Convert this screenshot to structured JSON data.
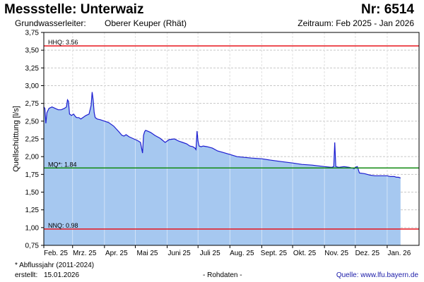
{
  "header": {
    "title": "Messstelle: Unterwaiz",
    "nr": "Nr: 6514",
    "aquifer_label": "Grundwasserleiter:",
    "aquifer_value": "Oberer Keuper (Rhät)",
    "period": "Zeitraum: Feb 2025 - Jan 2026"
  },
  "footer": {
    "footnote": "* Abflussjahr (2011-2024)",
    "created_label": "erstellt:",
    "created_date": "15.01.2026",
    "rohdaten": "- Rohdaten -",
    "source": "Quelle: www.lfu.bayern.de"
  },
  "chart_data": {
    "type": "area",
    "ylabel": "Quellschüttung [l/s]",
    "xlabel": "",
    "ylim": [
      0.75,
      3.75
    ],
    "xlim": [
      "2025-02-01",
      "2026-02-01"
    ],
    "grid": true,
    "yticks": [
      "0,75",
      "1,00",
      "1,25",
      "1,50",
      "1,75",
      "2,00",
      "2,25",
      "2,50",
      "2,75",
      "3,00",
      "3,25",
      "3,50",
      "3,75"
    ],
    "xticks": [
      {
        "date": "2025-02-01",
        "label": "Feb. 25"
      },
      {
        "date": "2025-03-01",
        "label": "Mrz. 25"
      },
      {
        "date": "2025-04-01",
        "label": "Apr. 25"
      },
      {
        "date": "2025-05-01",
        "label": "Mai 25"
      },
      {
        "date": "2025-06-01",
        "label": "Juni 25"
      },
      {
        "date": "2025-07-01",
        "label": "Juli 25"
      },
      {
        "date": "2025-08-01",
        "label": "Aug. 25"
      },
      {
        "date": "2025-09-01",
        "label": "Sept. 25"
      },
      {
        "date": "2025-10-01",
        "label": "Okt. 25"
      },
      {
        "date": "2025-11-01",
        "label": "Nov. 25"
      },
      {
        "date": "2025-12-01",
        "label": "Dez. 25"
      },
      {
        "date": "2026-01-01",
        "label": "Jan. 26"
      }
    ],
    "reference_lines": [
      {
        "label": "HHQ: 3.56",
        "value": 3.56,
        "color": "#e8141c"
      },
      {
        "label": "MQ*: 1.84",
        "value": 1.84,
        "color": "#128a12"
      },
      {
        "label": "NNQ: 0.98",
        "value": 0.98,
        "color": "#e8141c"
      }
    ],
    "colors": {
      "line": "#1c1cd0",
      "fill": "#a6c8f0",
      "grid": "#c8c8c8"
    },
    "series": [
      {
        "x": [
          "2025-02-01",
          "2025-02-02",
          "2025-02-03",
          "2025-02-04",
          "2025-02-06",
          "2025-02-09",
          "2025-02-12",
          "2025-02-15",
          "2025-02-18",
          "2025-02-21",
          "2025-02-23",
          "2025-02-24",
          "2025-02-25",
          "2025-02-26",
          "2025-02-28",
          "2025-03-02",
          "2025-03-04",
          "2025-03-05",
          "2025-03-07",
          "2025-03-09",
          "2025-03-11",
          "2025-03-14",
          "2025-03-17",
          "2025-03-19",
          "2025-03-20",
          "2025-03-21",
          "2025-03-22",
          "2025-03-23",
          "2025-03-25",
          "2025-03-28",
          "2025-04-01",
          "2025-04-05",
          "2025-04-10",
          "2025-04-15",
          "2025-04-18",
          "2025-04-20",
          "2025-04-22",
          "2025-04-25",
          "2025-04-28",
          "2025-05-01",
          "2025-05-04",
          "2025-05-06",
          "2025-05-08",
          "2025-05-09",
          "2025-05-10",
          "2025-05-11",
          "2025-05-13",
          "2025-05-16",
          "2025-05-20",
          "2025-05-25",
          "2025-05-30",
          "2025-06-03",
          "2025-06-08",
          "2025-06-12",
          "2025-06-16",
          "2025-06-20",
          "2025-06-23",
          "2025-06-26",
          "2025-06-28",
          "2025-06-29",
          "2025-06-30",
          "2025-07-01",
          "2025-07-02",
          "2025-07-04",
          "2025-07-06",
          "2025-07-10",
          "2025-07-15",
          "2025-07-20",
          "2025-07-25",
          "2025-08-01",
          "2025-08-08",
          "2025-08-15",
          "2025-08-22",
          "2025-09-01",
          "2025-09-10",
          "2025-09-20",
          "2025-10-01",
          "2025-10-10",
          "2025-10-20",
          "2025-11-01",
          "2025-11-08",
          "2025-11-10",
          "2025-11-11",
          "2025-11-12",
          "2025-11-15",
          "2025-11-20",
          "2025-11-25",
          "2025-11-28",
          "2025-11-30",
          "2025-12-01",
          "2025-12-03",
          "2025-12-05",
          "2025-12-10",
          "2025-12-15",
          "2025-12-20",
          "2025-12-25",
          "2026-01-01",
          "2026-01-04",
          "2026-01-08",
          "2026-01-10",
          "2026-01-12",
          "2026-01-14"
        ],
        "values": [
          2.7,
          2.68,
          2.47,
          2.62,
          2.68,
          2.7,
          2.68,
          2.66,
          2.66,
          2.68,
          2.7,
          2.8,
          2.78,
          2.6,
          2.58,
          2.6,
          2.56,
          2.55,
          2.55,
          2.53,
          2.55,
          2.58,
          2.6,
          2.72,
          2.91,
          2.8,
          2.62,
          2.55,
          2.53,
          2.52,
          2.5,
          2.48,
          2.43,
          2.35,
          2.3,
          2.29,
          2.31,
          2.28,
          2.26,
          2.24,
          2.22,
          2.2,
          2.05,
          2.3,
          2.35,
          2.37,
          2.36,
          2.34,
          2.3,
          2.26,
          2.2,
          2.24,
          2.25,
          2.22,
          2.2,
          2.18,
          2.15,
          2.14,
          2.12,
          2.1,
          2.36,
          2.22,
          2.15,
          2.14,
          2.15,
          2.14,
          2.12,
          2.08,
          2.06,
          2.03,
          2.0,
          1.99,
          1.98,
          1.97,
          1.95,
          1.93,
          1.91,
          1.89,
          1.88,
          1.86,
          1.85,
          1.86,
          2.2,
          1.86,
          1.85,
          1.86,
          1.85,
          1.84,
          1.83,
          1.85,
          1.86,
          1.77,
          1.76,
          1.74,
          1.73,
          1.73,
          1.73,
          1.72,
          1.72,
          1.71,
          1.71,
          1.7
        ]
      }
    ]
  }
}
